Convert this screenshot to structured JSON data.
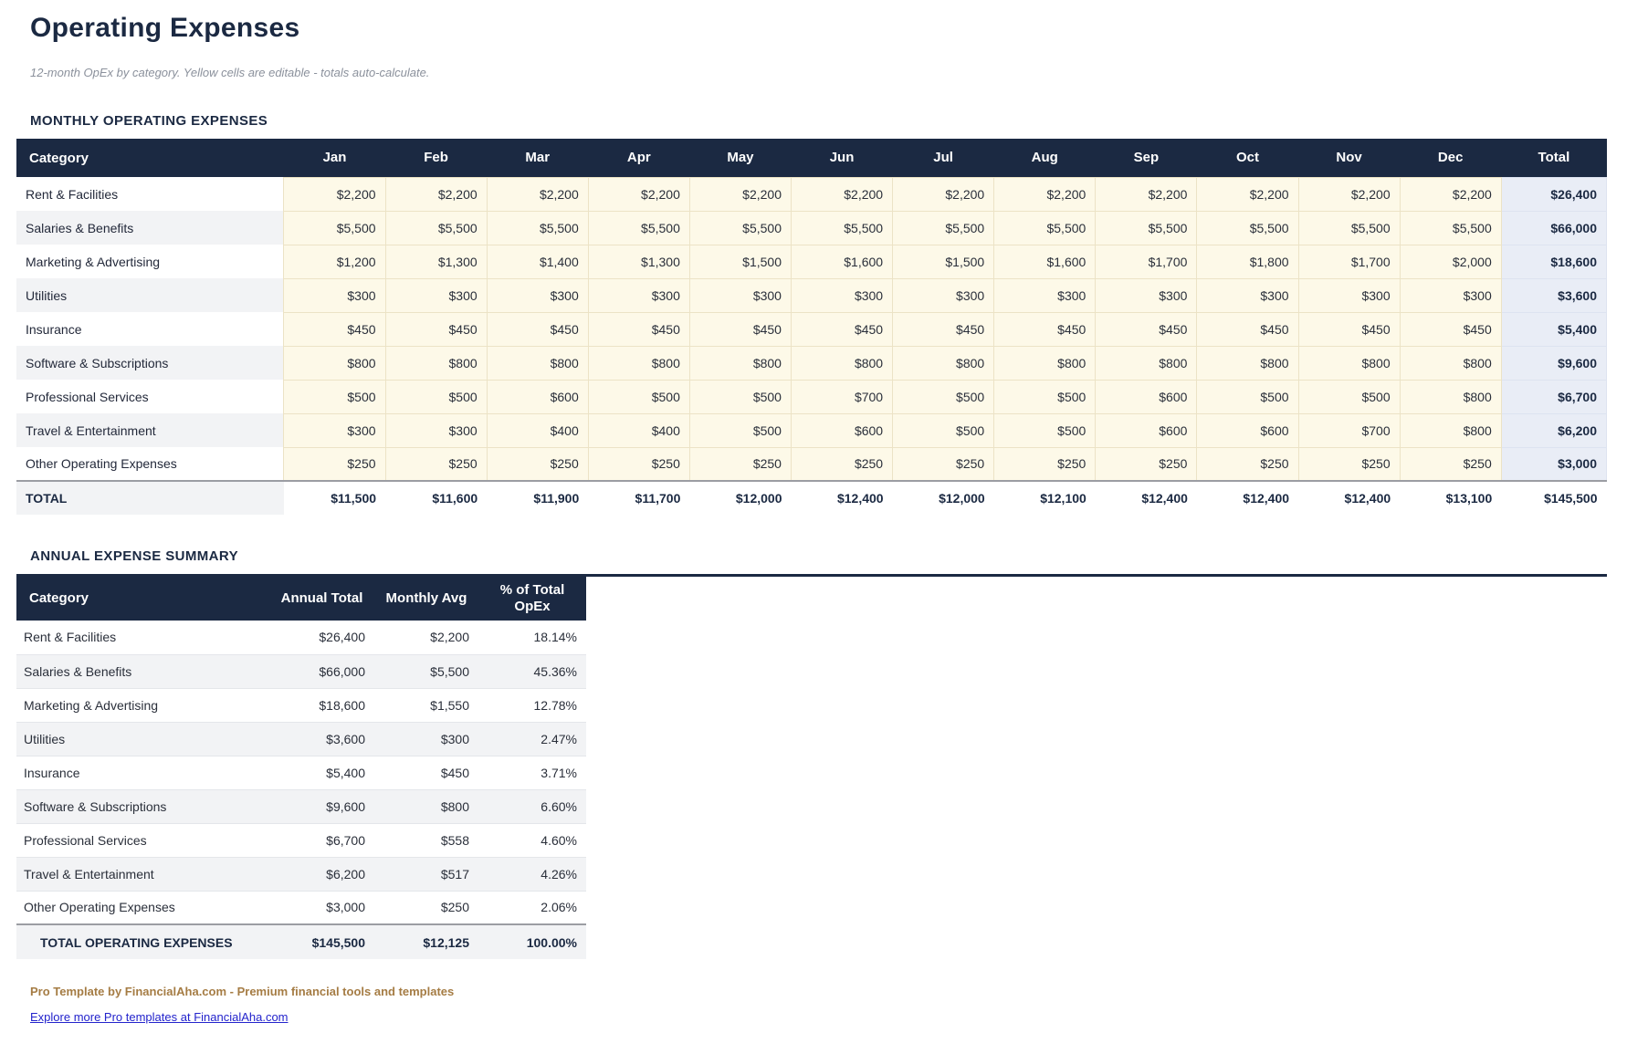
{
  "page": {
    "title": "Operating Expenses",
    "subtitle": "12-month OpEx by category. Yellow cells are editable - totals auto-calculate."
  },
  "colors": {
    "accent_navy": "#1b2942",
    "editable_cell_bg": "#fdf9e8",
    "total_column_bg": "#e9edf6",
    "zebra_stripe": "#f2f3f5",
    "footer_brown": "#a57c44",
    "link_blue": "#2323cc"
  },
  "monthly_table": {
    "heading": "MONTHLY OPERATING EXPENSES",
    "columns": [
      "Category",
      "Jan",
      "Feb",
      "Mar",
      "Apr",
      "May",
      "Jun",
      "Jul",
      "Aug",
      "Sep",
      "Oct",
      "Nov",
      "Dec",
      "Total"
    ],
    "rows": [
      {
        "category": "Rent & Facilities",
        "values": [
          "$2,200",
          "$2,200",
          "$2,200",
          "$2,200",
          "$2,200",
          "$2,200",
          "$2,200",
          "$2,200",
          "$2,200",
          "$2,200",
          "$2,200",
          "$2,200"
        ],
        "total": "$26,400"
      },
      {
        "category": "Salaries & Benefits",
        "values": [
          "$5,500",
          "$5,500",
          "$5,500",
          "$5,500",
          "$5,500",
          "$5,500",
          "$5,500",
          "$5,500",
          "$5,500",
          "$5,500",
          "$5,500",
          "$5,500"
        ],
        "total": "$66,000"
      },
      {
        "category": "Marketing & Advertising",
        "values": [
          "$1,200",
          "$1,300",
          "$1,400",
          "$1,300",
          "$1,500",
          "$1,600",
          "$1,500",
          "$1,600",
          "$1,700",
          "$1,800",
          "$1,700",
          "$2,000"
        ],
        "total": "$18,600"
      },
      {
        "category": "Utilities",
        "values": [
          "$300",
          "$300",
          "$300",
          "$300",
          "$300",
          "$300",
          "$300",
          "$300",
          "$300",
          "$300",
          "$300",
          "$300"
        ],
        "total": "$3,600"
      },
      {
        "category": "Insurance",
        "values": [
          "$450",
          "$450",
          "$450",
          "$450",
          "$450",
          "$450",
          "$450",
          "$450",
          "$450",
          "$450",
          "$450",
          "$450"
        ],
        "total": "$5,400"
      },
      {
        "category": "Software & Subscriptions",
        "values": [
          "$800",
          "$800",
          "$800",
          "$800",
          "$800",
          "$800",
          "$800",
          "$800",
          "$800",
          "$800",
          "$800",
          "$800"
        ],
        "total": "$9,600"
      },
      {
        "category": "Professional Services",
        "values": [
          "$500",
          "$500",
          "$600",
          "$500",
          "$500",
          "$700",
          "$500",
          "$500",
          "$600",
          "$500",
          "$500",
          "$800"
        ],
        "total": "$6,700"
      },
      {
        "category": "Travel & Entertainment",
        "values": [
          "$300",
          "$300",
          "$400",
          "$400",
          "$500",
          "$600",
          "$500",
          "$500",
          "$600",
          "$600",
          "$700",
          "$800"
        ],
        "total": "$6,200"
      },
      {
        "category": "Other Operating Expenses",
        "values": [
          "$250",
          "$250",
          "$250",
          "$250",
          "$250",
          "$250",
          "$250",
          "$250",
          "$250",
          "$250",
          "$250",
          "$250"
        ],
        "total": "$3,000"
      }
    ],
    "total_row": {
      "label": "TOTAL",
      "values": [
        "$11,500",
        "$11,600",
        "$11,900",
        "$11,700",
        "$12,000",
        "$12,400",
        "$12,000",
        "$12,100",
        "$12,400",
        "$12,400",
        "$12,400",
        "$13,100"
      ],
      "total": "$145,500"
    }
  },
  "summary_table": {
    "heading": "ANNUAL EXPENSE SUMMARY",
    "columns": [
      "Category",
      "Annual Total",
      "Monthly Avg",
      "% of Total OpEx"
    ],
    "rows": [
      {
        "category": "Rent & Facilities",
        "annual_total": "$26,400",
        "monthly_avg": "$2,200",
        "pct": "18.14%"
      },
      {
        "category": "Salaries & Benefits",
        "annual_total": "$66,000",
        "monthly_avg": "$5,500",
        "pct": "45.36%"
      },
      {
        "category": "Marketing & Advertising",
        "annual_total": "$18,600",
        "monthly_avg": "$1,550",
        "pct": "12.78%"
      },
      {
        "category": "Utilities",
        "annual_total": "$3,600",
        "monthly_avg": "$300",
        "pct": "2.47%"
      },
      {
        "category": "Insurance",
        "annual_total": "$5,400",
        "monthly_avg": "$450",
        "pct": "3.71%"
      },
      {
        "category": "Software & Subscriptions",
        "annual_total": "$9,600",
        "monthly_avg": "$800",
        "pct": "6.60%"
      },
      {
        "category": "Professional Services",
        "annual_total": "$6,700",
        "monthly_avg": "$558",
        "pct": "4.60%"
      },
      {
        "category": "Travel & Entertainment",
        "annual_total": "$6,200",
        "monthly_avg": "$517",
        "pct": "4.26%"
      },
      {
        "category": "Other Operating Expenses",
        "annual_total": "$3,000",
        "monthly_avg": "$250",
        "pct": "2.06%"
      }
    ],
    "total_row": {
      "label": "TOTAL OPERATING EXPENSES",
      "annual_total": "$145,500",
      "monthly_avg": "$12,125",
      "pct": "100.00%"
    }
  },
  "footer": {
    "tagline": "Pro Template by FinancialAha.com - Premium financial tools and templates",
    "link": "Explore more Pro templates at FinancialAha.com"
  }
}
